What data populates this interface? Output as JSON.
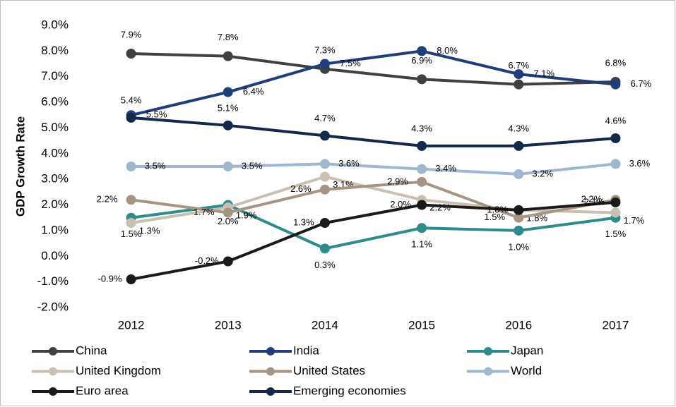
{
  "chart_data": {
    "type": "line",
    "ylabel": "GDP Growth Rate",
    "categories": [
      "2012",
      "2013",
      "2014",
      "2015",
      "2016",
      "2017"
    ],
    "ylim": [
      -2,
      9
    ],
    "yticks": [
      {
        "value": -2,
        "label": "-2.0%"
      },
      {
        "value": -1,
        "label": "-1.0%"
      },
      {
        "value": 0,
        "label": "0.0%"
      },
      {
        "value": 1,
        "label": "1.0%"
      },
      {
        "value": 2,
        "label": "2.0%"
      },
      {
        "value": 3,
        "label": "3.0%"
      },
      {
        "value": 4,
        "label": "4.0%"
      },
      {
        "value": 5,
        "label": "5.0%"
      },
      {
        "value": 6,
        "label": "6.0%"
      },
      {
        "value": 7,
        "label": "7.0%"
      },
      {
        "value": 8,
        "label": "8.0%"
      },
      {
        "value": 9,
        "label": "9.0%"
      }
    ],
    "grid": true,
    "legend": "bottom",
    "series": [
      {
        "name": "China",
        "color": "#404040",
        "values": [
          7.9,
          7.8,
          7.3,
          6.9,
          6.7,
          6.8
        ],
        "value_labels": [
          "7.9%",
          "7.8%",
          "7.3%",
          "6.9%",
          "6.7%",
          "6.8%"
        ]
      },
      {
        "name": "India",
        "color": "#1f3d7a",
        "values": [
          5.5,
          6.4,
          7.5,
          8.0,
          7.1,
          6.7
        ],
        "value_labels": [
          "5.5%",
          "6.4%",
          "7.5%",
          "8.0%",
          "7.1%",
          "6.7%"
        ]
      },
      {
        "name": "Japan",
        "color": "#2e8b8b",
        "values": [
          1.5,
          2.0,
          0.3,
          1.1,
          1.0,
          1.5
        ],
        "value_labels": [
          "1.5%",
          "2.0%",
          "0.3%",
          "1.1%",
          "1.0%",
          "1.5%"
        ]
      },
      {
        "name": "United Kingdom",
        "color": "#c9c0b1",
        "values": [
          1.3,
          1.9,
          3.1,
          2.2,
          1.8,
          1.7
        ],
        "value_labels": [
          "1.3%",
          "1.9%",
          "3.1%",
          "2.2%",
          "1.8%",
          "1.7%"
        ]
      },
      {
        "name": "United States",
        "color": "#a69583",
        "values": [
          2.2,
          1.7,
          2.6,
          2.9,
          1.5,
          2.2
        ],
        "value_labels": [
          "2.2%",
          "1.7%",
          "2.6%",
          "2.9%",
          "1.5%",
          "2.2%"
        ]
      },
      {
        "name": "World",
        "color": "#9fb7cf",
        "values": [
          3.5,
          3.5,
          3.6,
          3.4,
          3.2,
          3.6
        ],
        "value_labels": [
          "3.5%",
          "3.5%",
          "3.6%",
          "3.4%",
          "3.2%",
          "3.6%"
        ]
      },
      {
        "name": "Euro area",
        "color": "#1a1a1a",
        "values": [
          -0.9,
          -0.2,
          1.3,
          2.0,
          1.8,
          2.1
        ],
        "value_labels": [
          "-0.9%",
          "-0.2%",
          "1.3%",
          "2.0%",
          "1.8%",
          "2.1%"
        ]
      },
      {
        "name": "Emerging economies",
        "color": "#14284b",
        "values": [
          5.4,
          5.1,
          4.7,
          4.3,
          4.3,
          4.6
        ],
        "value_labels": [
          "5.4%",
          "5.1%",
          "4.7%",
          "4.3%",
          "4.3%",
          "4.6%"
        ]
      }
    ]
  }
}
